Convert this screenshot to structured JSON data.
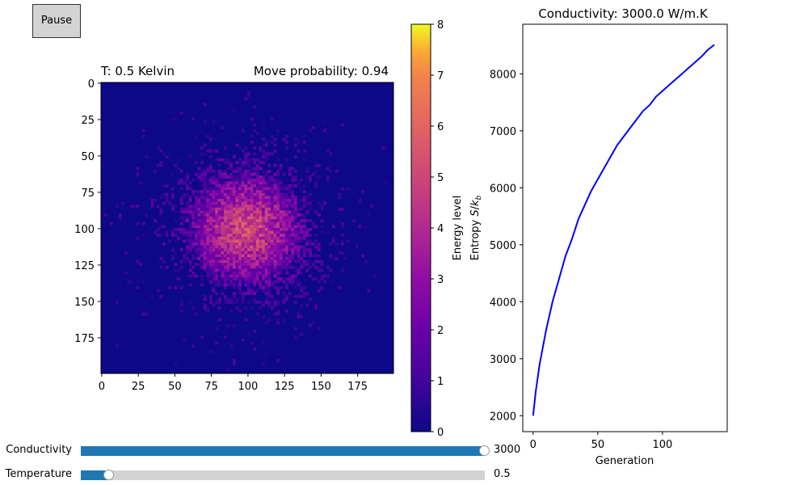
{
  "controls": {
    "pause_label": "Pause"
  },
  "sliders": [
    {
      "name": "conductivity",
      "label": "Conductivity",
      "value_text": "3000",
      "fraction": 1.0,
      "color": "#1f77b4"
    },
    {
      "name": "temperature",
      "label": "Temperature",
      "value_text": "0.5",
      "fraction": 0.07,
      "color": "#1f77b4"
    }
  ],
  "chart_data": [
    {
      "type": "heatmap",
      "title_left": "T: 0.5 Kelvin",
      "title_right": "Move probability: 0.94",
      "grid_size": 200,
      "xlim": [
        0,
        199
      ],
      "ylim": [
        199,
        0
      ],
      "xticks": [
        "0",
        "25",
        "50",
        "75",
        "100",
        "125",
        "150",
        "175"
      ],
      "yticks": [
        "0",
        "25",
        "50",
        "75",
        "100",
        "125",
        "150",
        "175"
      ],
      "tick_values": [
        0,
        25,
        50,
        75,
        100,
        125,
        150,
        175
      ],
      "blob_center": [
        98,
        100
      ],
      "peak_energy": 5,
      "colormap": "plasma",
      "colorbar": {
        "label": "Energy level",
        "range": [
          0,
          8
        ],
        "ticks": [
          "0",
          "1",
          "2",
          "3",
          "4",
          "5",
          "6",
          "7",
          "8"
        ]
      }
    },
    {
      "type": "line",
      "title": "Conductivity: 3000.0 W/m.K",
      "xlabel": "Generation",
      "ylabel": "Entropy S/k_b",
      "xlim": [
        -8,
        150
      ],
      "ylim": [
        1720,
        8870
      ],
      "xticks": [
        0,
        50,
        100
      ],
      "yticks": [
        2000,
        3000,
        4000,
        5000,
        6000,
        7000,
        8000
      ],
      "series": [
        {
          "color": "#0000ff",
          "x": [
            0,
            2,
            5,
            10,
            15,
            20,
            25,
            30,
            35,
            40,
            45,
            50,
            55,
            60,
            65,
            70,
            75,
            80,
            85,
            90,
            95,
            100,
            105,
            110,
            115,
            120,
            125,
            130,
            135,
            140
          ],
          "y": [
            2000,
            2420,
            2900,
            3500,
            4000,
            4400,
            4800,
            5100,
            5450,
            5700,
            5950,
            6150,
            6350,
            6550,
            6750,
            6900,
            7050,
            7200,
            7350,
            7450,
            7600,
            7700,
            7800,
            7900,
            8000,
            8100,
            8200,
            8300,
            8420,
            8510
          ]
        }
      ]
    }
  ]
}
